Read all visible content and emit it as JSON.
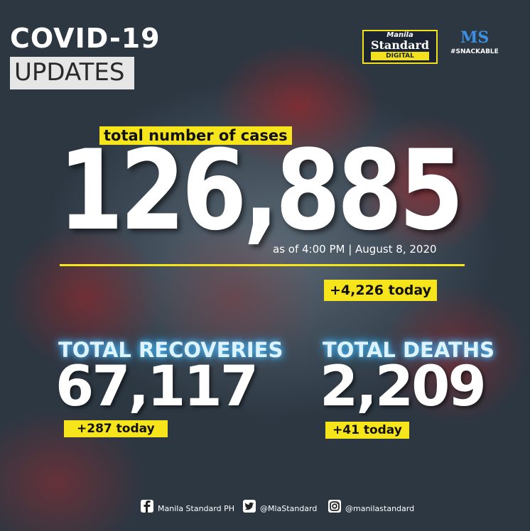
{
  "header": {
    "title_line1": "COVID-19",
    "title_line2": "UPDATES",
    "logo": {
      "line1": "Manila",
      "line2": "Standard",
      "line3": "DIGITAL"
    },
    "brand": {
      "mark": "MS",
      "tag": "#SNACKABLE"
    }
  },
  "total_cases": {
    "label": "total number of cases",
    "value": "126,885",
    "as_of": "as of 4:00 PM | August 8, 2020",
    "today": "+4,226 today"
  },
  "recoveries": {
    "label": "TOTAL RECOVERIES",
    "value": "67,117",
    "today": "+287 today"
  },
  "deaths": {
    "label": "TOTAL DEATHS",
    "value": "2,209",
    "today": "+41 today"
  },
  "footer": [
    "Manila Standard PH",
    "@MlaStandard",
    "@manilastandard"
  ]
}
